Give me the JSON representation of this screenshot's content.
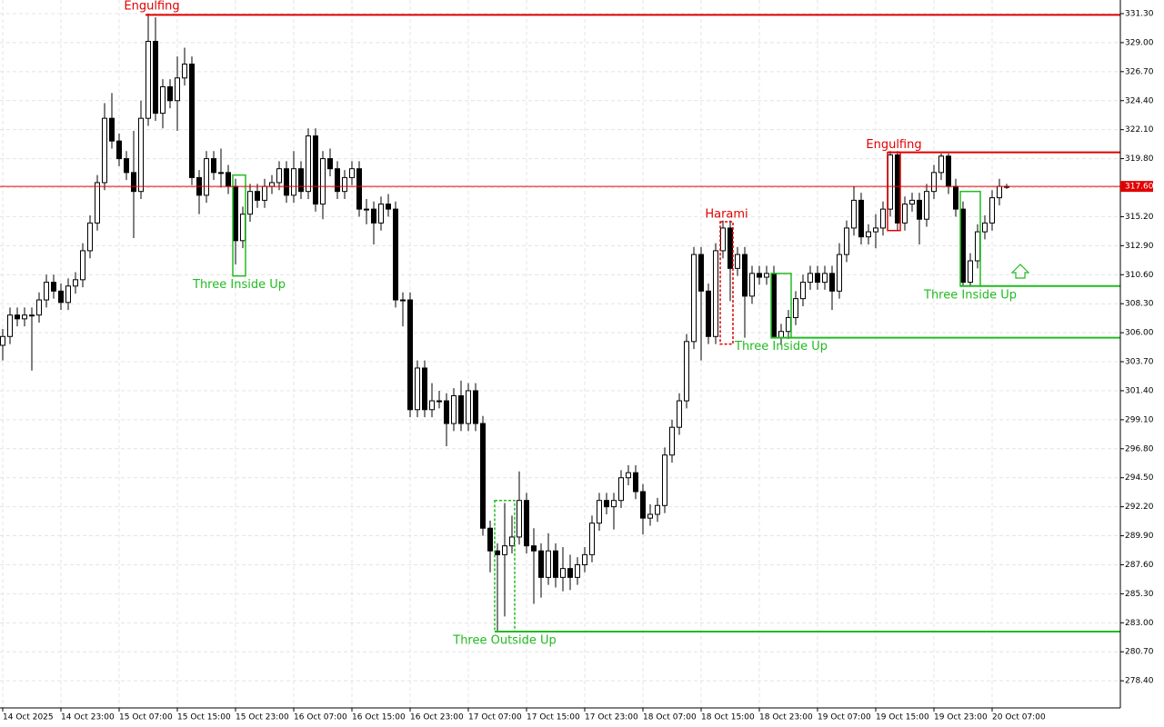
{
  "chart_data": {
    "type": "candlestick",
    "categories": [
      "14 Oct 2025",
      null,
      null,
      null,
      null,
      null,
      null,
      null,
      "14 Oct 23:00",
      null,
      null,
      null,
      null,
      null,
      null,
      null,
      "15 Oct 07:00",
      null,
      null,
      null,
      null,
      null,
      null,
      null,
      "15 Oct 15:00",
      null,
      null,
      null,
      null,
      null,
      null,
      null,
      "15 Oct 23:00",
      null,
      null,
      null,
      null,
      null,
      null,
      null,
      "16 Oct 07:00",
      null,
      null,
      null,
      null,
      null,
      null,
      null,
      "16 Oct 15:00",
      null,
      null,
      null,
      null,
      null,
      null,
      null,
      "16 Oct 23:00",
      null,
      null,
      null,
      null,
      null,
      null,
      null,
      "17 Oct 07:00",
      null,
      null,
      null,
      null,
      null,
      null,
      null,
      "17 Oct 15:00",
      null,
      null,
      null,
      null,
      null,
      null,
      null,
      "17 Oct 23:00",
      null,
      null,
      null,
      null,
      null,
      null,
      null,
      "18 Oct 07:00",
      null,
      null,
      null,
      null,
      null,
      null,
      null,
      "18 Oct 15:00",
      null,
      null,
      null,
      null,
      null,
      null,
      null,
      "18 Oct 23:00",
      null,
      null,
      null,
      null,
      null,
      null,
      null,
      "19 Oct 07:00",
      null,
      null,
      null,
      null,
      null,
      null,
      null,
      "19 Oct 15:00",
      null,
      null,
      null,
      null,
      null,
      null,
      null,
      "19 Oct 23:00",
      null,
      null,
      null,
      null,
      null,
      null,
      null,
      "20 Oct 07:00",
      null,
      null
    ],
    "open": [
      305.0,
      305.7,
      307.4,
      307.1,
      307.4,
      307.4,
      308.6,
      310.0,
      309.3,
      308.4,
      309.7,
      310.2,
      312.5,
      314.7,
      317.9,
      323.0,
      321.2,
      319.8,
      318.7,
      317.2,
      323.0,
      329.1,
      323.4,
      325.5,
      324.4,
      326.2,
      327.3,
      318.3,
      316.9,
      319.8,
      318.7,
      318.7,
      317.6,
      313.3,
      315.4,
      317.2,
      316.5,
      317.6,
      317.9,
      319.0,
      316.9,
      319.0,
      317.2,
      321.6,
      316.2,
      319.8,
      319.0,
      317.2,
      318.3,
      319.0,
      315.8,
      315.8,
      314.7,
      316.2,
      315.8,
      308.6,
      308.6,
      299.9,
      303.2,
      299.9,
      300.6,
      300.6,
      298.8,
      301.0,
      298.8,
      301.4,
      298.8,
      290.5,
      288.7,
      288.4,
      289.1,
      289.8,
      292.7,
      289.1,
      288.7,
      286.6,
      288.7,
      286.6,
      287.3,
      286.6,
      287.6,
      288.4,
      290.9,
      292.7,
      292.2,
      292.7,
      294.5,
      294.9,
      293.4,
      291.3,
      291.6,
      292.3,
      296.3,
      298.5,
      300.6,
      305.3,
      312.2,
      309.3,
      305.7,
      312.5,
      314.3,
      311.1,
      312.2,
      308.9,
      310.7,
      310.4,
      310.7,
      305.6,
      306.1,
      307.2,
      308.7,
      310.0,
      310.7,
      310.0,
      310.7,
      309.3,
      312.2,
      314.3,
      316.5,
      313.6,
      314.0,
      314.3,
      315.8,
      320.1,
      314.7,
      316.2,
      316.5,
      315.0,
      317.2,
      318.7,
      320.0,
      317.6,
      315.8,
      310.0,
      311.7,
      314.0,
      314.7,
      316.7,
      317.6
    ],
    "high": [
      306.3,
      308.0,
      308.0,
      308.0,
      308.0,
      309.2,
      310.6,
      310.6,
      309.9,
      310.3,
      310.8,
      313.1,
      315.3,
      318.5,
      324.2,
      325.0,
      321.8,
      320.4,
      322.0,
      324.4,
      331.3,
      331.0,
      326.1,
      326.1,
      327.9,
      328.6,
      327.9,
      318.9,
      320.4,
      320.4,
      320.6,
      319.3,
      318.2,
      316.0,
      317.8,
      317.8,
      318.2,
      318.5,
      319.6,
      319.6,
      320.4,
      319.6,
      322.2,
      322.2,
      320.4,
      320.6,
      319.6,
      318.9,
      319.6,
      319.6,
      316.6,
      316.4,
      316.8,
      317.0,
      316.4,
      309.2,
      309.2,
      303.8,
      303.8,
      302.0,
      301.4,
      301.2,
      301.6,
      302.2,
      302.0,
      302.0,
      299.4,
      291.1,
      289.3,
      292.5,
      291.5,
      295.0,
      293.3,
      290.5,
      289.3,
      290.1,
      289.3,
      289.0,
      288.4,
      288.2,
      289.0,
      291.5,
      293.3,
      293.3,
      293.3,
      295.1,
      295.5,
      295.5,
      294.0,
      292.4,
      292.9,
      296.9,
      299.1,
      301.2,
      305.9,
      312.8,
      312.8,
      309.9,
      313.1,
      314.9,
      314.9,
      312.8,
      312.8,
      311.3,
      311.3,
      311.3,
      311.3,
      306.7,
      307.8,
      309.3,
      310.6,
      311.3,
      311.3,
      311.3,
      311.3,
      313.1,
      314.9,
      317.6,
      317.1,
      314.6,
      315.4,
      316.4,
      320.4,
      320.4,
      316.8,
      317.1,
      317.1,
      317.8,
      319.3,
      320.2,
      320.2,
      318.2,
      316.4,
      312.3,
      314.6,
      315.3,
      317.3,
      318.2,
      317.8
    ],
    "low": [
      303.8,
      305.1,
      306.5,
      306.5,
      303.0,
      306.8,
      308.0,
      308.7,
      307.8,
      307.8,
      309.1,
      309.6,
      311.9,
      314.1,
      317.3,
      320.6,
      319.2,
      318.1,
      313.5,
      316.6,
      322.4,
      322.8,
      322.2,
      323.8,
      322.0,
      325.6,
      317.7,
      315.4,
      316.3,
      318.1,
      317.5,
      317.0,
      311.4,
      312.7,
      314.8,
      315.9,
      315.9,
      317.0,
      317.3,
      316.3,
      316.3,
      316.6,
      316.6,
      315.6,
      315.0,
      318.4,
      316.6,
      316.6,
      317.7,
      315.2,
      314.6,
      313.0,
      314.1,
      315.2,
      308.0,
      306.5,
      299.3,
      299.3,
      299.3,
      299.3,
      300.0,
      297.0,
      298.2,
      298.2,
      298.2,
      298.2,
      289.9,
      287.0,
      282.3,
      283.5,
      288.5,
      289.2,
      288.5,
      284.5,
      285.0,
      286.0,
      285.8,
      285.5,
      285.6,
      286.0,
      287.0,
      287.8,
      290.3,
      291.6,
      290.4,
      292.1,
      293.9,
      292.8,
      290.0,
      290.7,
      291.0,
      291.7,
      295.7,
      297.9,
      300.0,
      304.7,
      303.8,
      305.1,
      305.1,
      311.9,
      308.5,
      310.5,
      305.6,
      308.3,
      309.8,
      309.8,
      305.6,
      305.0,
      305.5,
      306.6,
      308.1,
      309.4,
      309.4,
      309.4,
      307.8,
      308.7,
      311.6,
      313.7,
      313.0,
      313.0,
      312.7,
      313.7,
      315.2,
      314.1,
      314.1,
      315.6,
      313.0,
      314.4,
      316.6,
      318.1,
      317.0,
      315.2,
      309.7,
      309.7,
      311.1,
      313.4,
      314.1,
      316.1,
      317.4
    ],
    "close": [
      305.7,
      307.4,
      307.1,
      307.4,
      307.4,
      308.6,
      310.0,
      309.3,
      308.4,
      309.7,
      310.2,
      312.5,
      314.7,
      317.9,
      323.0,
      321.2,
      319.8,
      318.7,
      317.2,
      323.0,
      329.1,
      323.4,
      325.5,
      324.4,
      326.2,
      327.3,
      318.3,
      316.9,
      319.8,
      318.7,
      318.7,
      317.6,
      313.3,
      315.4,
      317.2,
      316.5,
      317.6,
      317.9,
      319.0,
      316.9,
      319.0,
      317.2,
      321.6,
      316.2,
      319.8,
      319.0,
      317.2,
      318.3,
      319.0,
      315.8,
      315.8,
      314.7,
      316.2,
      315.8,
      308.6,
      308.6,
      299.9,
      303.2,
      299.9,
      300.6,
      300.6,
      298.8,
      301.0,
      298.8,
      301.4,
      298.8,
      290.5,
      288.7,
      288.4,
      289.1,
      289.8,
      292.7,
      289.1,
      288.7,
      286.6,
      288.7,
      286.6,
      287.3,
      286.6,
      287.6,
      288.4,
      290.9,
      292.7,
      292.2,
      292.7,
      294.5,
      294.9,
      293.4,
      291.3,
      291.6,
      292.3,
      296.3,
      298.5,
      300.6,
      305.3,
      312.2,
      309.3,
      305.7,
      312.5,
      314.3,
      311.1,
      312.2,
      308.9,
      310.7,
      310.4,
      310.7,
      305.6,
      306.1,
      307.2,
      308.7,
      310.0,
      310.7,
      310.0,
      310.7,
      309.3,
      312.2,
      314.3,
      316.5,
      313.6,
      314.0,
      314.3,
      315.8,
      320.1,
      314.7,
      316.2,
      316.5,
      315.0,
      317.2,
      318.7,
      320.0,
      317.6,
      315.8,
      310.0,
      311.7,
      314.0,
      314.7,
      316.7,
      317.6,
      317.6
    ],
    "ylim": [
      276.25,
      332.38
    ],
    "yticks": [
      {
        "value": 331.3,
        "label": "331.30"
      },
      {
        "value": 329.0,
        "label": "329.00"
      },
      {
        "value": 326.7,
        "label": "326.70"
      },
      {
        "value": 324.4,
        "label": "324.40"
      },
      {
        "value": 322.1,
        "label": "322.10"
      },
      {
        "value": 319.8,
        "label": "319.80"
      },
      {
        "value": 317.5,
        "label": "317.50"
      },
      {
        "value": 315.2,
        "label": "315.20"
      },
      {
        "value": 312.9,
        "label": "312.90"
      },
      {
        "value": 310.6,
        "label": "310.60"
      },
      {
        "value": 308.3,
        "label": "308.30"
      },
      {
        "value": 306.0,
        "label": "306.00"
      },
      {
        "value": 303.7,
        "label": "303.70"
      },
      {
        "value": 301.4,
        "label": "301.40"
      },
      {
        "value": 299.1,
        "label": "299.10"
      },
      {
        "value": 296.8,
        "label": "296.80"
      },
      {
        "value": 294.5,
        "label": "294.50"
      },
      {
        "value": 292.2,
        "label": "292.20"
      },
      {
        "value": 289.9,
        "label": "289.90"
      },
      {
        "value": 287.6,
        "label": "287.60"
      },
      {
        "value": 285.3,
        "label": "285.30"
      },
      {
        "value": 283.0,
        "label": "283.00"
      },
      {
        "value": 280.7,
        "label": "280.70"
      },
      {
        "value": 278.4,
        "label": "278.40"
      }
    ],
    "grid": true,
    "bull_color": "#ffffff",
    "bear_color": "#000000",
    "last_price": {
      "value": 317.6,
      "label": "317.60",
      "color": "#e00000"
    },
    "patterns": [
      {
        "label": "Engulfing",
        "color": "#e00000",
        "bars": [
          20,
          21
        ],
        "top": 331.3,
        "bottom": 322.4,
        "level": 331.2,
        "style": "none",
        "label_position": "above"
      },
      {
        "label": "Three Inside Up",
        "color": "#22bb22",
        "bars": [
          32,
          33
        ],
        "top": 318.5,
        "bottom": 310.5,
        "style": "solid",
        "label_position": "below"
      },
      {
        "label": "Three Outside Up",
        "color": "#22bb22",
        "bars": [
          68,
          70
        ],
        "top": 292.7,
        "bottom": 282.3,
        "level": 282.3,
        "style": "mixed",
        "label_position": "below"
      },
      {
        "label": "Harami",
        "color": "#e00000",
        "bars": [
          99,
          100
        ],
        "top": 314.8,
        "bottom": 305.1,
        "style": "dashed",
        "label_position": "above"
      },
      {
        "label": "Three Inside Up",
        "color": "#22bb22",
        "bars": [
          106,
          108
        ],
        "top": 310.7,
        "bottom": 305.6,
        "level": 305.6,
        "style": "solid",
        "label_position": "below"
      },
      {
        "label": "Engulfing",
        "color": "#e00000",
        "bars": [
          122,
          123
        ],
        "top": 320.3,
        "bottom": 314.1,
        "level": 320.3,
        "style": "solid",
        "label_position": "above"
      },
      {
        "label": "Three Inside Up",
        "color": "#22bb22",
        "bars": [
          132,
          134
        ],
        "top": 317.2,
        "bottom": 309.7,
        "level": 309.7,
        "style": "solid",
        "label_position": "below"
      }
    ]
  }
}
